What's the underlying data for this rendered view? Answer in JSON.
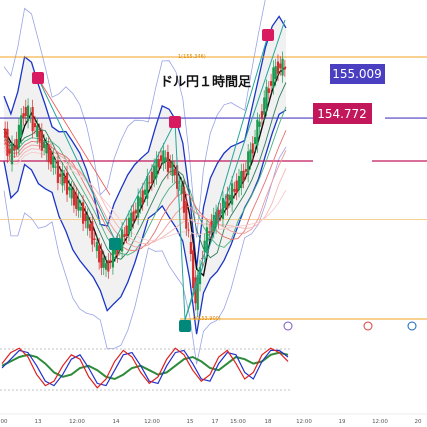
{
  "chart_data": {
    "type": "candlestick",
    "title": "ドル円１時間足",
    "price_labels": [
      {
        "name": "price-label-155-009",
        "text": "155.009",
        "value": 155.009,
        "color": "#4a3fc1"
      },
      {
        "name": "price-label-154-772",
        "text": "154.772",
        "value": 154.772,
        "color": "#c2185b"
      }
    ],
    "fib_labels": [
      {
        "text": "1(155.346)",
        "value": 155.346
      },
      {
        "text": "0(153.900)",
        "value": 153.9
      }
    ],
    "x_ticks": [
      "00",
      "13",
      "12:00",
      "14",
      "12:00",
      "15",
      "17",
      "15:00",
      "18",
      "12:00",
      "19",
      "12:00",
      "20"
    ],
    "close_path": [
      154.95,
      154.8,
      154.88,
      155.05,
      155.02,
      154.92,
      154.85,
      154.78,
      154.7,
      154.66,
      154.58,
      154.52,
      154.45,
      154.36,
      154.24,
      154.18,
      154.26,
      154.32,
      154.4,
      154.48,
      154.56,
      154.64,
      154.72,
      154.8,
      154.76,
      154.7,
      154.6,
      154.35,
      154.0,
      154.28,
      154.4,
      154.46,
      154.52,
      154.58,
      154.64,
      154.7,
      154.82,
      154.95,
      155.1,
      155.22,
      155.3,
      155.28
    ],
    "oscillator": {
      "red": [
        0.2,
        0.7,
        0.9,
        0.5,
        -0.3,
        -0.8,
        -0.6,
        0.1,
        0.6,
        0.4,
        -0.4,
        -0.9,
        -0.5,
        0.3,
        0.8,
        0.5,
        -0.2,
        -0.7,
        -0.4,
        0.4,
        0.9,
        0.6,
        -0.1,
        -0.6,
        -0.3,
        0.5,
        0.8,
        0.2,
        -0.5,
        -0.2,
        0.6,
        0.9,
        0.7,
        0.3
      ],
      "blue": [
        0.0,
        0.4,
        0.8,
        0.7,
        0.1,
        -0.6,
        -0.8,
        -0.3,
        0.4,
        0.6,
        0.0,
        -0.7,
        -0.8,
        -0.1,
        0.6,
        0.7,
        0.1,
        -0.6,
        -0.7,
        0.1,
        0.7,
        0.8,
        0.2,
        -0.5,
        -0.6,
        0.2,
        0.7,
        0.6,
        -0.2,
        -0.5,
        0.3,
        0.8,
        0.8,
        0.5
      ],
      "green": [
        0.1,
        0.3,
        0.5,
        0.6,
        0.5,
        0.2,
        -0.2,
        -0.4,
        -0.3,
        0.0,
        0.1,
        -0.1,
        -0.4,
        -0.5,
        -0.3,
        0.0,
        0.1,
        -0.1,
        -0.3,
        -0.2,
        0.1,
        0.4,
        0.5,
        0.3,
        0.0,
        -0.1,
        0.2,
        0.5,
        0.4,
        0.2,
        0.3,
        0.6,
        0.7,
        0.6
      ]
    }
  }
}
